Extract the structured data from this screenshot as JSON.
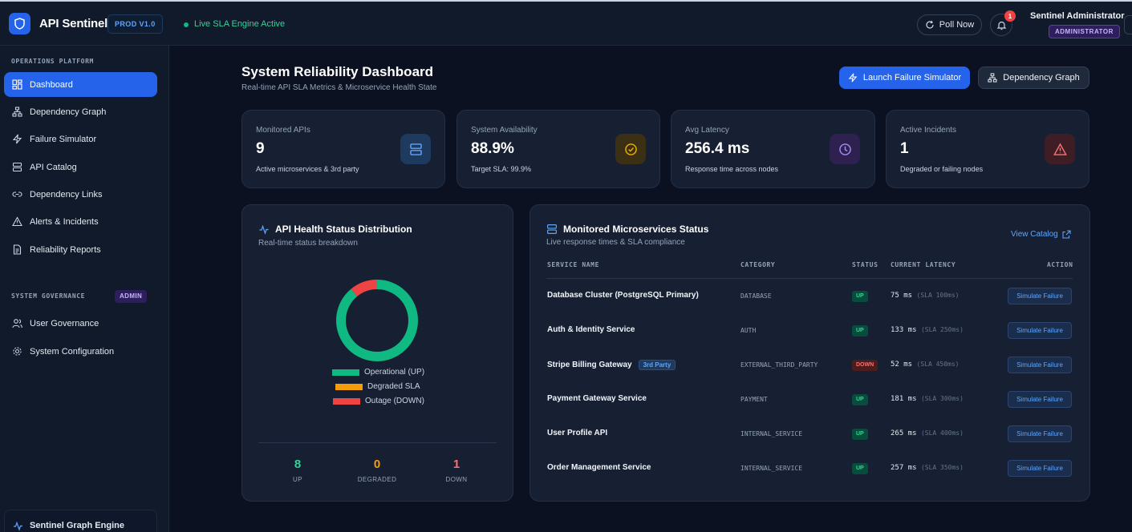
{
  "header": {
    "app_title": "API Sentinel",
    "env_badge": "PROD V1.0",
    "live_status": "Live SLA Engine Active",
    "poll_label": "Poll Now",
    "notification_count": "1",
    "user_name": "Sentinel Administrator",
    "user_role": "ADMINISTRATOR"
  },
  "sidebar": {
    "section_ops": "OPERATIONS PLATFORM",
    "items": [
      {
        "label": "Dashboard",
        "icon": "dashboard-icon",
        "active": true
      },
      {
        "label": "Dependency Graph",
        "icon": "graph-icon"
      },
      {
        "label": "Failure Simulator",
        "icon": "lightning-icon"
      },
      {
        "label": "API Catalog",
        "icon": "server-icon"
      },
      {
        "label": "Dependency Links",
        "icon": "link-icon"
      },
      {
        "label": "Alerts & Incidents",
        "icon": "alert-triangle-icon"
      },
      {
        "label": "Reliability Reports",
        "icon": "document-icon"
      }
    ],
    "section_gov": "SYSTEM GOVERNANCE",
    "admin_tag": "ADMIN",
    "gov_items": [
      {
        "label": "User Governance",
        "icon": "users-icon"
      },
      {
        "label": "System Configuration",
        "icon": "gear-icon"
      }
    ],
    "engine_label": "Sentinel Graph Engine"
  },
  "page": {
    "title": "System Reliability Dashboard",
    "subtitle": "Real-time API SLA Metrics & Microservice Health State",
    "launch_btn": "Launch Failure Simulator",
    "graph_btn": "Dependency Graph"
  },
  "stats": [
    {
      "label": "Monitored APIs",
      "value": "9",
      "sub": "Active microservices & 3rd party",
      "icon": "server-icon",
      "color": "#3b82f6"
    },
    {
      "label": "System Availability",
      "value": "88.9%",
      "sub": "Target SLA: 99.9%",
      "icon": "check-circle-icon",
      "color": "#eab308"
    },
    {
      "label": "Avg Latency",
      "value": "256.4 ms",
      "sub": "Response time across nodes",
      "icon": "clock-icon",
      "color": "#a855f7"
    },
    {
      "label": "Active Incidents",
      "value": "1",
      "sub": "Degraded or failing nodes",
      "icon": "alert-triangle-icon",
      "color": "#ef4444"
    }
  ],
  "health": {
    "title": "API Health Status Distribution",
    "subtitle": "Real-time status breakdown",
    "legend": [
      {
        "label": "Operational (UP)",
        "color": "#10b981"
      },
      {
        "label": "Degraded SLA",
        "color": "#f59e0b"
      },
      {
        "label": "Outage (DOWN)",
        "color": "#ef4444"
      }
    ],
    "counts": [
      {
        "value": "8",
        "label": "UP",
        "color": "#34d399"
      },
      {
        "value": "0",
        "label": "DEGRADED",
        "color": "#f59e0b"
      },
      {
        "value": "1",
        "label": "DOWN",
        "color": "#f87171"
      }
    ]
  },
  "chart_data": {
    "type": "pie",
    "categories": [
      "Operational (UP)",
      "Degraded SLA",
      "Outage (DOWN)"
    ],
    "values": [
      8,
      0,
      1
    ]
  },
  "services": {
    "title": "Monitored Microservices Status",
    "subtitle": "Live response times & SLA compliance",
    "view_catalog": "View Catalog",
    "columns": [
      "SERVICE NAME",
      "CATEGORY",
      "STATUS",
      "CURRENT LATENCY",
      "ACTION"
    ],
    "rows": [
      {
        "name": "Database Cluster (PostgreSQL Primary)",
        "badge": "",
        "category": "DATABASE",
        "status": "UP",
        "latency": "75 ms",
        "sla": "(SLA 100ms)",
        "action": "Simulate Failure"
      },
      {
        "name": "Auth & Identity Service",
        "badge": "",
        "category": "AUTH",
        "status": "UP",
        "latency": "133 ms",
        "sla": "(SLA 250ms)",
        "action": "Simulate Failure"
      },
      {
        "name": "Stripe Billing Gateway",
        "badge": "3rd Party",
        "category": "EXTERNAL_THIRD_PARTY",
        "status": "DOWN",
        "latency": "52 ms",
        "sla": "(SLA 450ms)",
        "action": "Simulate Failure"
      },
      {
        "name": "Payment Gateway Service",
        "badge": "",
        "category": "PAYMENT",
        "status": "UP",
        "latency": "181 ms",
        "sla": "(SLA 300ms)",
        "action": "Simulate Failure"
      },
      {
        "name": "User Profile API",
        "badge": "",
        "category": "INTERNAL_SERVICE",
        "status": "UP",
        "latency": "265 ms",
        "sla": "(SLA 400ms)",
        "action": "Simulate Failure"
      },
      {
        "name": "Order Management Service",
        "badge": "",
        "category": "INTERNAL_SERVICE",
        "status": "UP",
        "latency": "257 ms",
        "sla": "(SLA 350ms)",
        "action": "Simulate Failure"
      }
    ]
  }
}
